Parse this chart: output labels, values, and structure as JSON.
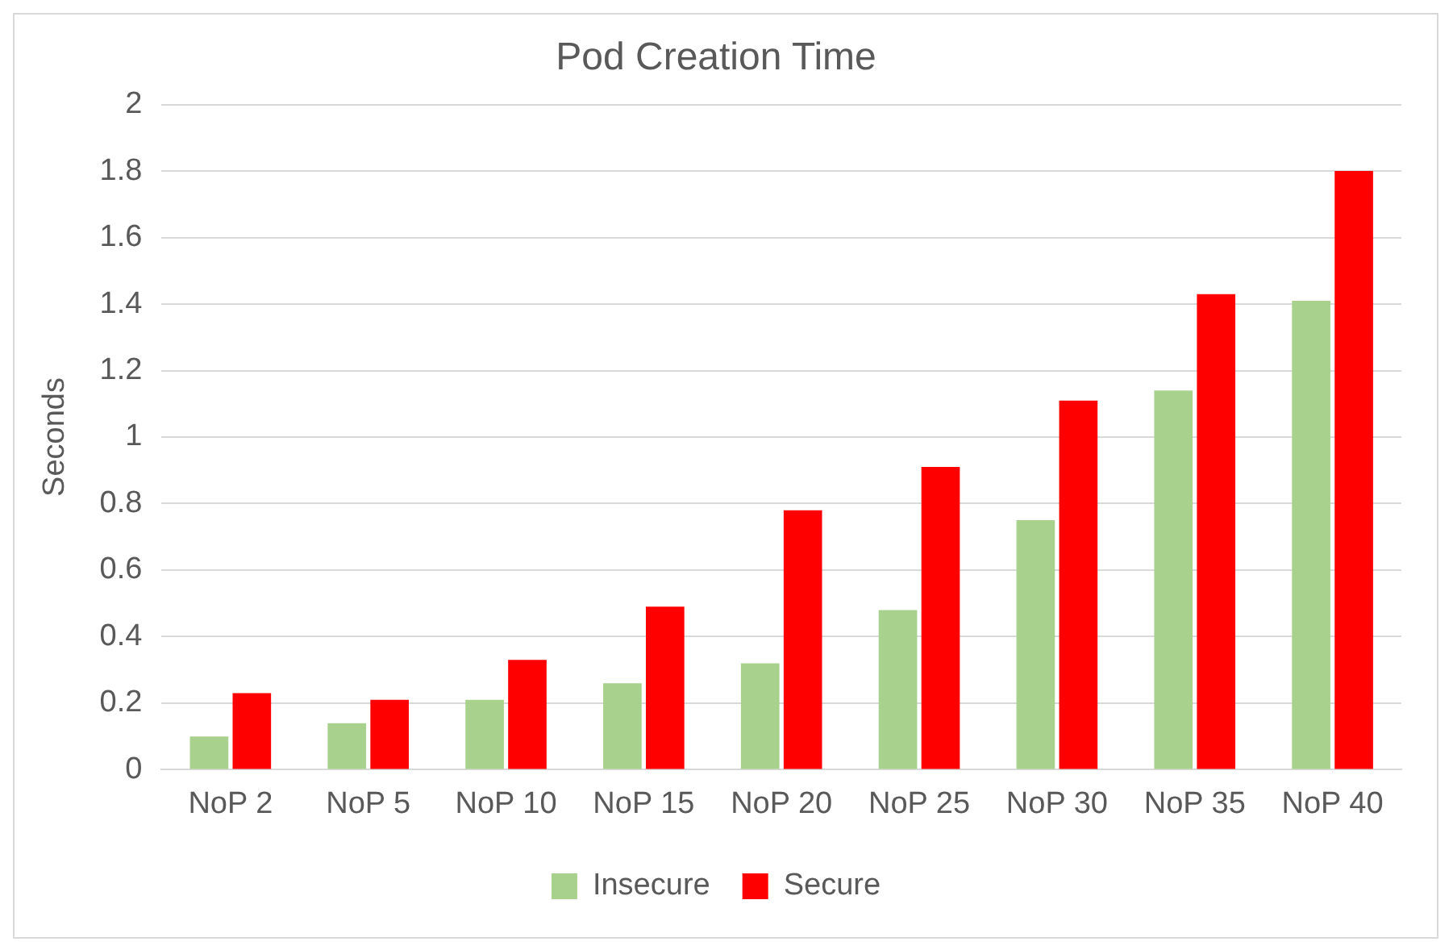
{
  "chart_data": {
    "type": "bar",
    "title": "Pod Creation Time",
    "ylabel": "Seconds",
    "categories": [
      "NoP 2",
      "NoP 5",
      "NoP 10",
      "NoP 15",
      "NoP 20",
      "NoP 25",
      "NoP 30",
      "NoP 35",
      "NoP 40"
    ],
    "series": [
      {
        "name": "Insecure",
        "color": "#a9d18e",
        "values": [
          0.1,
          0.14,
          0.21,
          0.26,
          0.32,
          0.48,
          0.75,
          1.14,
          1.41
        ]
      },
      {
        "name": "Secure",
        "color": "#ff0000",
        "values": [
          0.23,
          0.21,
          0.33,
          0.49,
          0.78,
          0.91,
          1.11,
          1.43,
          1.8
        ]
      }
    ],
    "ylim": [
      0,
      2
    ],
    "yticks": [
      0,
      0.2,
      0.4,
      0.6,
      0.8,
      1,
      1.2,
      1.4,
      1.6,
      1.8,
      2
    ],
    "grid": "y",
    "legend": "bottom"
  }
}
